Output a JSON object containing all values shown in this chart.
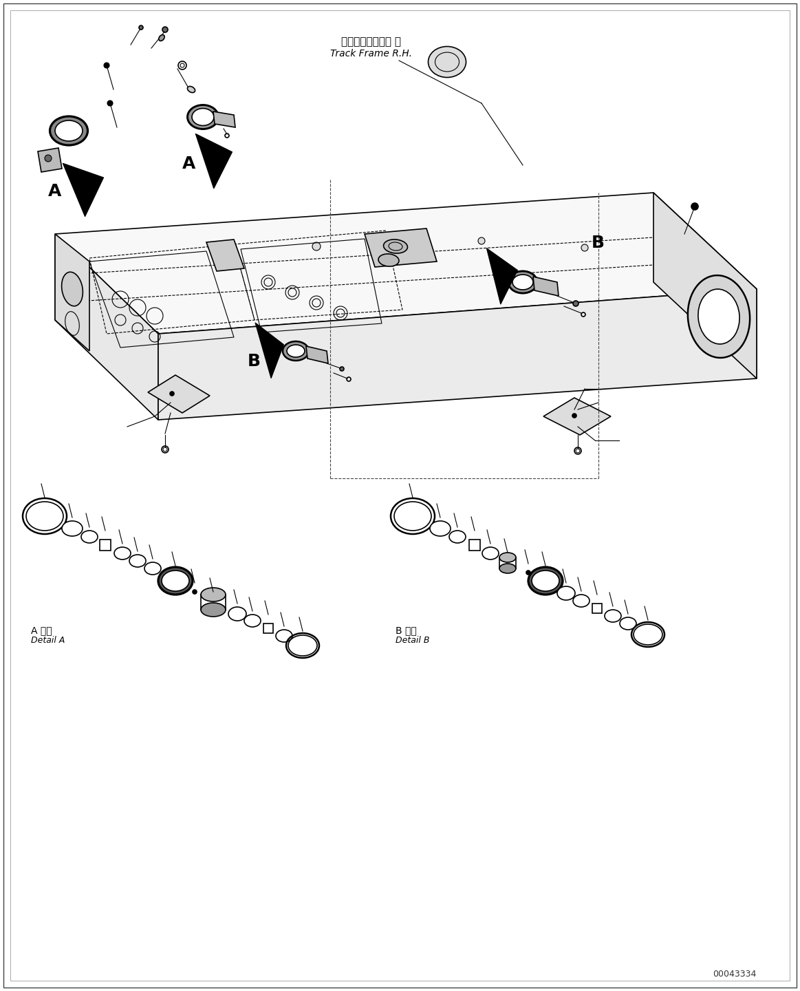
{
  "title": "",
  "background_color": "#ffffff",
  "line_color": "#000000",
  "label_A_jp": "A 詳細",
  "label_A_en": "Detail A",
  "label_B_jp": "B 詳細",
  "label_B_en": "Detail B",
  "track_frame_jp": "トラックフレーム 右",
  "track_frame_en": "Track Frame R.H.",
  "part_number": "00043334",
  "arrow_A_label": "A",
  "arrow_B_label": "B"
}
